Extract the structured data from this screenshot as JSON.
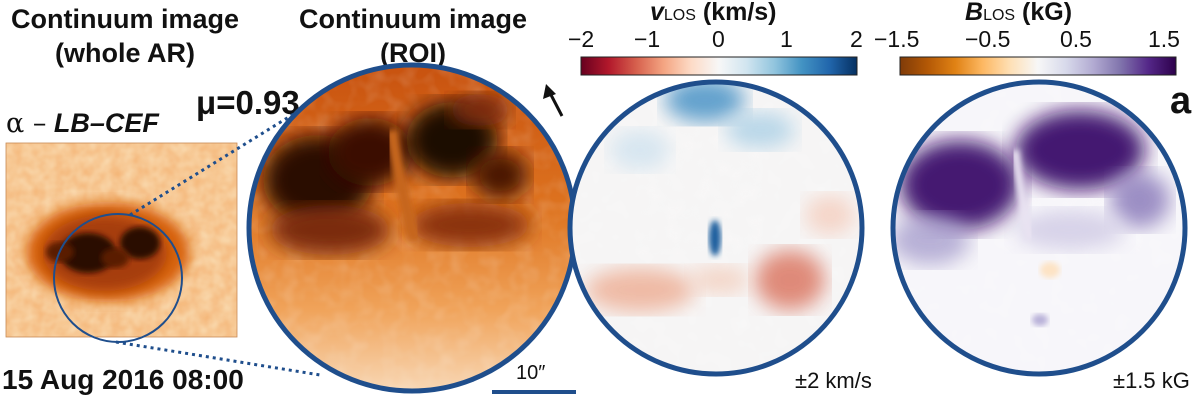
{
  "titles": {
    "whole_ar_line1": "Continuum image",
    "whole_ar_line2": "(whole AR)",
    "roi_line1": "Continuum image",
    "roi_line2": "(ROI)",
    "mu": "μ=0.93",
    "region_prefix": "α –",
    "region_name": "LB–CEF",
    "date": "15 Aug 2016 08:00",
    "panel_letter": "a"
  },
  "colorbars": {
    "vlos": {
      "symbol": "v",
      "subscript": "LOS",
      "unit": "(km/s)",
      "ticks": [
        "−2",
        "−1",
        "0",
        "1",
        "2"
      ],
      "range": [
        -2,
        2
      ],
      "colors": [
        "#67001f",
        "#b2182b",
        "#d6604d",
        "#f4a582",
        "#fddbc7",
        "#f7f7f7",
        "#d1e5f0",
        "#92c5de",
        "#4393c3",
        "#2166ac",
        "#053061"
      ]
    },
    "blos": {
      "symbol": "B",
      "subscript": "LOS",
      "unit": "(kG)",
      "ticks": [
        "−1.5",
        "−0.5",
        "0.5",
        "1.5"
      ],
      "range": [
        -1.5,
        1.5
      ],
      "colors": [
        "#7f3b08",
        "#b35806",
        "#e08214",
        "#fdb863",
        "#fee0b6",
        "#f7f7f7",
        "#d8daeb",
        "#b2abd2",
        "#8073ac",
        "#542788",
        "#2d004b"
      ]
    }
  },
  "annotations": {
    "scale_bar": "10″",
    "vlos_saturation": "±2 km/s",
    "blos_saturation": "±1.5 kG"
  },
  "colors": {
    "circle_outline": "#1f4e8c",
    "continuum_dark": "#1a0a05",
    "continuum_mid": "#d4651a",
    "continuum_light": "#f6c79a"
  }
}
